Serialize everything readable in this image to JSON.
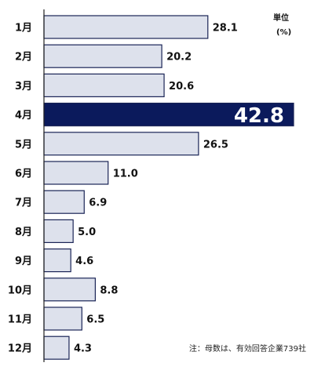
{
  "chart_data": {
    "type": "bar",
    "orientation": "horizontal",
    "categories": [
      "1月",
      "2月",
      "3月",
      "4月",
      "5月",
      "6月",
      "7月",
      "8月",
      "9月",
      "10月",
      "11月",
      "12月"
    ],
    "values": [
      28.1,
      20.2,
      20.6,
      42.8,
      26.5,
      11.0,
      6.9,
      5.0,
      4.6,
      8.8,
      6.5,
      4.3
    ],
    "value_labels": [
      "28.1",
      "20.2",
      "20.6",
      "42.8",
      "26.5",
      "11.0",
      "6.9",
      "5.0",
      "4.6",
      "8.8",
      "6.5",
      "4.3"
    ],
    "highlight_index": 3,
    "xlim": [
      0,
      42.8
    ],
    "unit_label": "単位",
    "unit": "(%)",
    "note": "注：母数は、有効回答企業739社",
    "colors": {
      "bar_fill": "#dde1ec",
      "bar_stroke": "#1a2456",
      "highlight_fill": "#0b1a5c",
      "axis": "#222222"
    },
    "grid": false,
    "legend": "none"
  }
}
